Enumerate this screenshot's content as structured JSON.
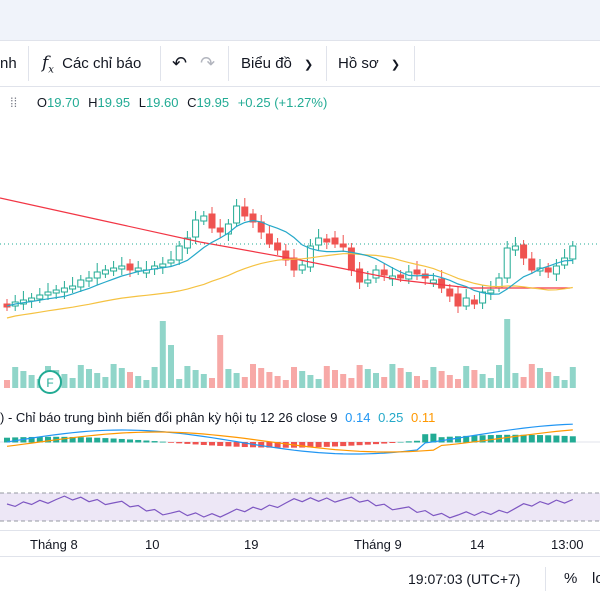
{
  "toolbar": {
    "cut_label": "nh",
    "indicators_label": "Các chỉ báo",
    "chart_type_label": "Biểu đồ",
    "profile_label": "Hồ sơ"
  },
  "legend": {
    "o_label": "O",
    "o_value": "19.70",
    "h_label": "H",
    "h_value": "19.95",
    "l_label": "L",
    "l_value": "19.60",
    "c_label": "C",
    "c_value": "19.95",
    "change": "+0.25 (+1.27%)"
  },
  "macd": {
    "label": ") - Chỉ báo trung bình biến đổi phân kỳ hội tụ 12 26 close 9",
    "v1": "0.14",
    "v2": "0.25",
    "v3": "0.11",
    "colors": {
      "v1": "#2196f3",
      "v2": "#22ab94",
      "v3": "#ff9800"
    }
  },
  "marker": {
    "label": "F"
  },
  "time_axis": {
    "ticks": [
      "Tháng 8",
      "10",
      "19",
      "Tháng 9",
      "14",
      "13:00"
    ]
  },
  "status": {
    "time": "19:07:03 (UTC+7)",
    "percent": "%",
    "log": "lo"
  },
  "colors": {
    "up": "#22ab94",
    "down": "#ef5350",
    "ma_long": "#f23645",
    "ma_mid": "#f5c242",
    "ma_short": "#26a9c9",
    "rsi": "#7e57c2"
  }
}
